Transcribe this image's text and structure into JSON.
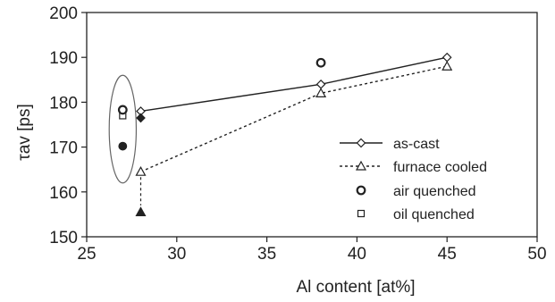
{
  "chart_data": {
    "type": "scatter",
    "xlabel": "Al content [at%]",
    "ylabel": "τav [ps]",
    "xlim": [
      25,
      50
    ],
    "ylim": [
      150,
      200
    ],
    "xticks": [
      25,
      30,
      35,
      40,
      45,
      50
    ],
    "yticks": [
      150,
      160,
      170,
      180,
      190,
      200
    ],
    "grid": false,
    "legend_position": "right",
    "series": [
      {
        "name": "as-cast",
        "marker": "diamond",
        "line": "solid",
        "points": [
          [
            28,
            178
          ],
          [
            38,
            184
          ],
          [
            45,
            190
          ]
        ]
      },
      {
        "name": "furnace cooled",
        "marker": "triangle",
        "line": "dashed",
        "points": [
          [
            28,
            164.5
          ],
          [
            38,
            182
          ],
          [
            45,
            188
          ]
        ]
      },
      {
        "name": "air quenched",
        "marker": "circle",
        "line": "none",
        "points": [
          [
            38,
            188.8
          ]
        ]
      },
      {
        "name": "oil quenched",
        "marker": "square",
        "line": "none",
        "points": [
          [
            27,
            177
          ]
        ]
      }
    ],
    "extra_markers": [
      {
        "shape": "diamond",
        "filled": true,
        "x": 28,
        "y": 176.5
      },
      {
        "shape": "triangle",
        "filled": true,
        "x": 28,
        "y": 155.5
      },
      {
        "shape": "circle",
        "filled": true,
        "x": 27,
        "y": 170.2
      },
      {
        "shape": "circle",
        "filled": false,
        "x": 27,
        "y": 178.3
      }
    ],
    "dropline": {
      "x": 28,
      "y_from": 164.5,
      "y_to": 157
    },
    "ellipse": {
      "cx": 27,
      "cy": 174,
      "rx": 0.75,
      "ry": 12
    }
  }
}
